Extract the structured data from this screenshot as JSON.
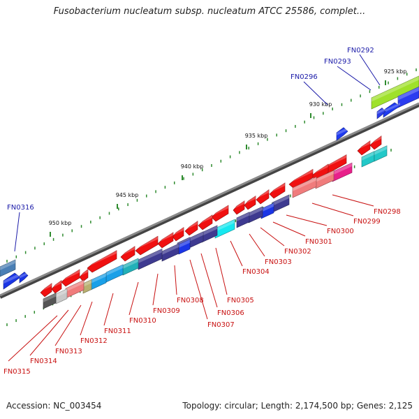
{
  "header": {
    "title": "Fusobacterium nucleatum subsp. nucleatum ATCC 25586, complet..."
  },
  "footer": {
    "accession": "Accession: NC_003454",
    "summary": "Topology: circular; Length: 2,174,500 bp; Genes: 2,125"
  },
  "colors": {
    "backbone": "#8a8a8a",
    "tick": "#2e8b2e",
    "label_forward_strand": "#1a1aa8",
    "label_reverse_strand": "#c81010"
  },
  "kbp_labels": [
    "925 kbp",
    "930 kbp",
    "935 kbp",
    "940 kbp",
    "945 kbp",
    "950 kbp"
  ],
  "forward_labels": [
    "FN0292",
    "FN0293",
    "FN0296",
    "FN0316"
  ],
  "reverse_labels": [
    "FN0298",
    "FN0299",
    "FN0300",
    "FN0301",
    "FN0302",
    "FN0303",
    "FN0304",
    "FN0305",
    "FN0306",
    "FN0307",
    "FN0308",
    "FN0309",
    "FN0310",
    "FN0311",
    "FN0312",
    "FN0313",
    "FN0314",
    "FN0315"
  ]
}
